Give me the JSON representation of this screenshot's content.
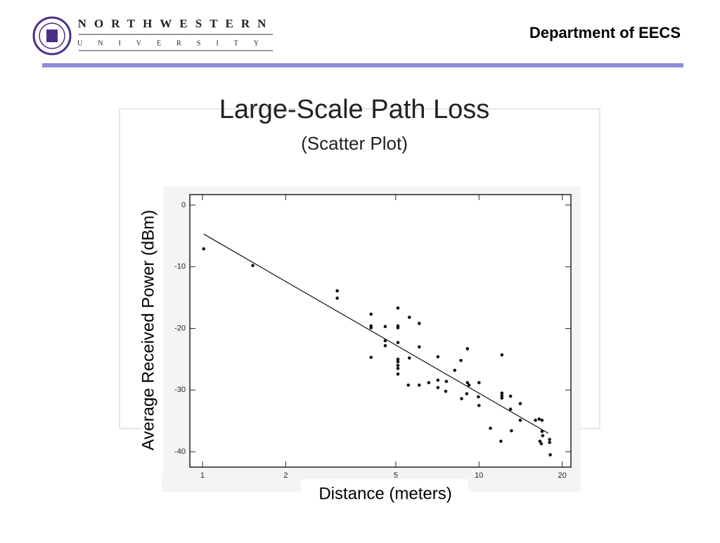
{
  "header": {
    "university": "NORTHWESTERN",
    "university_sub": "UNIVERSITY",
    "department": "Department of EECS"
  },
  "chart_data": {
    "type": "scatter",
    "title": "Large-Scale Path Loss",
    "subtitle": "(Scatter Plot)",
    "x_label": "Distance (meters)",
    "y_label": "Average Received Power (dBm)",
    "x_scale": "log",
    "xlim": [
      0.9,
      21.5
    ],
    "ylim": [
      -42.5,
      1.7
    ],
    "xticks": [
      1,
      2,
      5,
      10,
      20
    ],
    "yticks": [
      0,
      -10,
      -20,
      -30,
      -40
    ],
    "series": [
      {
        "color": "#111111",
        "x": [
          1.01,
          1.52,
          3.07,
          3.07,
          4.07,
          4.07,
          4.07,
          4.07,
          4.58,
          4.58,
          4.58,
          5.09,
          5.09,
          5.09,
          5.09,
          5.09,
          5.09,
          5.09,
          5.09,
          5.09,
          5.6,
          5.6,
          5.55,
          6.08,
          6.08,
          6.08,
          6.58,
          7.1,
          7.1,
          7.1,
          7.62,
          7.58,
          8.17,
          8.6,
          8.65,
          9.08,
          9.08,
          9.2,
          9.03,
          10.0,
          9.95,
          10.0,
          11.0,
          12.1,
          12.1,
          12.1,
          12.1,
          12.0,
          13.0,
          13.0,
          13.1,
          14.1,
          14.1,
          16.0,
          16.5,
          16.9,
          16.6,
          16.8,
          16.9,
          17.0,
          18.0,
          18.0,
          18.1
        ],
        "values": [
          -7.1,
          -9.8,
          -13.9,
          -15.1,
          -17.7,
          -19.6,
          -19.9,
          -24.7,
          -19.7,
          -22.0,
          -22.8,
          -16.7,
          -19.6,
          -19.9,
          -22.3,
          -25.0,
          -25.4,
          -26.0,
          -26.5,
          -27.4,
          -18.2,
          -24.8,
          -29.2,
          -19.2,
          -23.0,
          -29.2,
          -28.8,
          -24.6,
          -28.4,
          -29.6,
          -28.6,
          -30.2,
          -26.8,
          -25.2,
          -31.4,
          -23.3,
          -28.8,
          -29.2,
          -30.6,
          -28.8,
          -31.1,
          -32.5,
          -36.2,
          -24.3,
          -30.5,
          -30.9,
          -31.3,
          -38.3,
          -31.0,
          -33.1,
          -36.6,
          -32.2,
          -34.9,
          -34.9,
          -34.7,
          -34.9,
          -38.3,
          -38.7,
          -36.7,
          -37.4,
          -38.0,
          -38.5,
          -40.5
        ]
      }
    ],
    "fit_line": {
      "color": "#111111",
      "x": [
        1.01,
        17.8
      ],
      "values": [
        -4.7,
        -37.0
      ]
    }
  }
}
